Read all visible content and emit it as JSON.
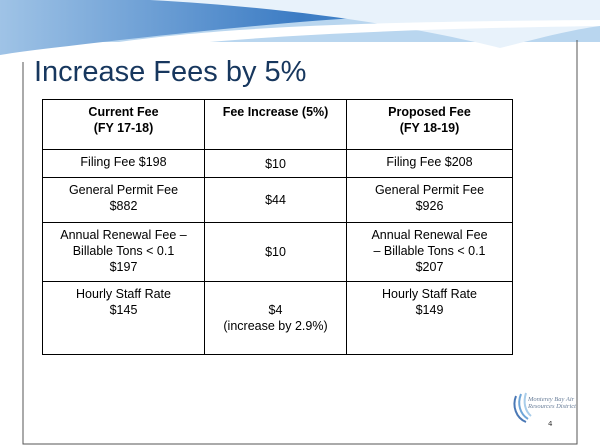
{
  "title": "Increase Fees by 5%",
  "table": {
    "header": [
      [
        "Current Fee",
        "(FY 17-18)"
      ],
      [
        "Fee Increase (5%)"
      ],
      [
        "Proposed Fee",
        "(FY 18-19)"
      ]
    ],
    "rows": [
      [
        [
          "Filing Fee $198"
        ],
        [
          "$10"
        ],
        [
          "Filing Fee $208"
        ]
      ],
      [
        [
          "General Permit Fee",
          "$882"
        ],
        [
          "$44"
        ],
        [
          "General Permit Fee",
          "$926"
        ]
      ],
      [
        [
          "Annual Renewal Fee –",
          "Billable Tons < 0.1",
          "$197"
        ],
        [
          "$10"
        ],
        [
          "Annual Renewal Fee",
          "– Billable Tons < 0.1",
          "$207"
        ]
      ],
      [
        [
          "Hourly Staff Rate",
          "$145"
        ],
        [
          "$4",
          "(increase by 2.9%)"
        ],
        [
          "Hourly Staff Rate",
          "$149"
        ]
      ]
    ]
  },
  "logo": [
    "Monterey Bay Air",
    "Resources District"
  ],
  "page_number": "4"
}
